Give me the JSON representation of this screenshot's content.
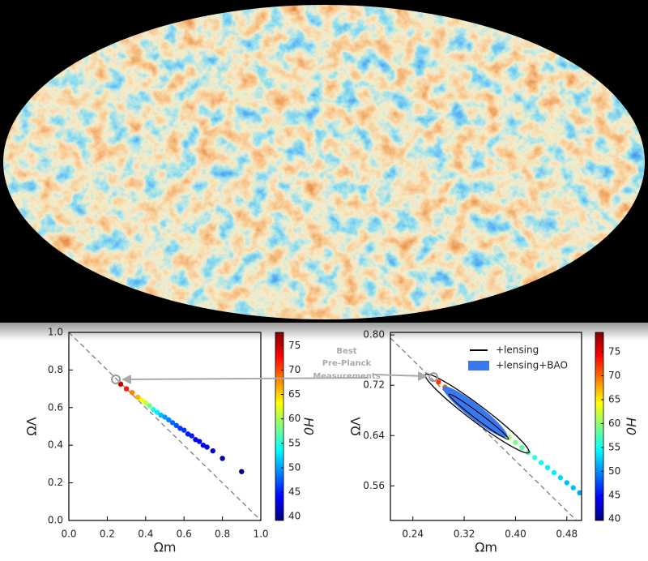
{
  "chart_data": [
    {
      "type": "scatter",
      "xlabel": "Ωm",
      "ylabel": "ΩΛ",
      "xlim": [
        0,
        1
      ],
      "ylim": [
        0,
        1
      ],
      "xticks": [
        {
          "value": 0,
          "label": "0.0"
        },
        0.2,
        0.4,
        0.6,
        0.8,
        {
          "value": 1,
          "label": "1.0"
        }
      ],
      "yticks": [
        {
          "value": 0,
          "label": "0.0"
        },
        0.2,
        0.4,
        0.6,
        0.8,
        {
          "value": 1,
          "label": "1.0"
        }
      ],
      "colorbar": {
        "label": "H0",
        "lim": [
          39.2,
          77.7
        ],
        "ticks": [
          40,
          45,
          50,
          55,
          60,
          65,
          70,
          75
        ]
      },
      "best_point": {
        "x": 0.245,
        "y": 0.75
      },
      "annotation": [
        "Best",
        "Pre-Planck",
        "Measurements"
      ],
      "series": [
        {
          "x": [
            0.27,
            0.3,
            0.33,
            0.36,
            0.38,
            0.4,
            0.42,
            0.44,
            0.46,
            0.48,
            0.5,
            0.52,
            0.54,
            0.56,
            0.58,
            0.6,
            0.62,
            0.64,
            0.66,
            0.68,
            0.7,
            0.72,
            0.75,
            0.8,
            0.9
          ],
          "y": [
            0.725,
            0.7,
            0.68,
            0.655,
            0.64,
            0.625,
            0.61,
            0.59,
            0.575,
            0.56,
            0.55,
            0.535,
            0.52,
            0.505,
            0.49,
            0.48,
            0.46,
            0.45,
            0.43,
            0.42,
            0.4,
            0.39,
            0.37,
            0.33,
            0.26
          ],
          "h0": [
            75,
            72,
            68,
            66,
            63,
            61,
            58,
            55,
            53,
            51,
            50,
            49,
            48,
            47,
            46,
            46,
            45,
            45,
            44,
            44,
            43,
            43,
            42,
            41,
            40
          ]
        }
      ]
    },
    {
      "type": "scatter",
      "xlabel": "Ωm",
      "ylabel": "ΩΛ",
      "xlim": [
        0.205,
        0.503
      ],
      "ylim": [
        0.505,
        0.804
      ],
      "xticks": [
        0.24,
        0.32,
        {
          "value": 0.4,
          "label": "0.40"
        },
        0.48
      ],
      "yticks": [
        0.56,
        0.64,
        0.72,
        {
          "value": 0.8,
          "label": "0.80"
        }
      ],
      "colorbar": {
        "label": "H0",
        "lim": [
          39.7,
          79.1
        ],
        "ticks": [
          40,
          45,
          50,
          55,
          60,
          65,
          70,
          75
        ]
      },
      "best_point": {
        "x": 0.272,
        "y": 0.733
      },
      "legend": [
        {
          "name": "+lensing",
          "color": "#000000"
        },
        {
          "name": "+lensing+BAO",
          "color": "#3a78f0"
        }
      ],
      "series": [
        {
          "x": [
            0.28,
            0.29,
            0.3,
            0.31,
            0.32,
            0.33,
            0.34,
            0.35,
            0.36,
            0.37,
            0.38,
            0.39,
            0.4,
            0.41,
            0.42,
            0.43,
            0.44,
            0.45,
            0.46,
            0.47,
            0.48,
            0.49,
            0.5
          ],
          "y": [
            0.725,
            0.717,
            0.709,
            0.701,
            0.693,
            0.685,
            0.677,
            0.669,
            0.661,
            0.653,
            0.645,
            0.637,
            0.629,
            0.621,
            0.613,
            0.605,
            0.597,
            0.589,
            0.581,
            0.573,
            0.565,
            0.557,
            0.549
          ],
          "h0": [
            72,
            70,
            69,
            68,
            67,
            66,
            65,
            64,
            63,
            62,
            61,
            60,
            59,
            58,
            57,
            56,
            55,
            54,
            54,
            53,
            52,
            52,
            51
          ]
        }
      ]
    }
  ]
}
